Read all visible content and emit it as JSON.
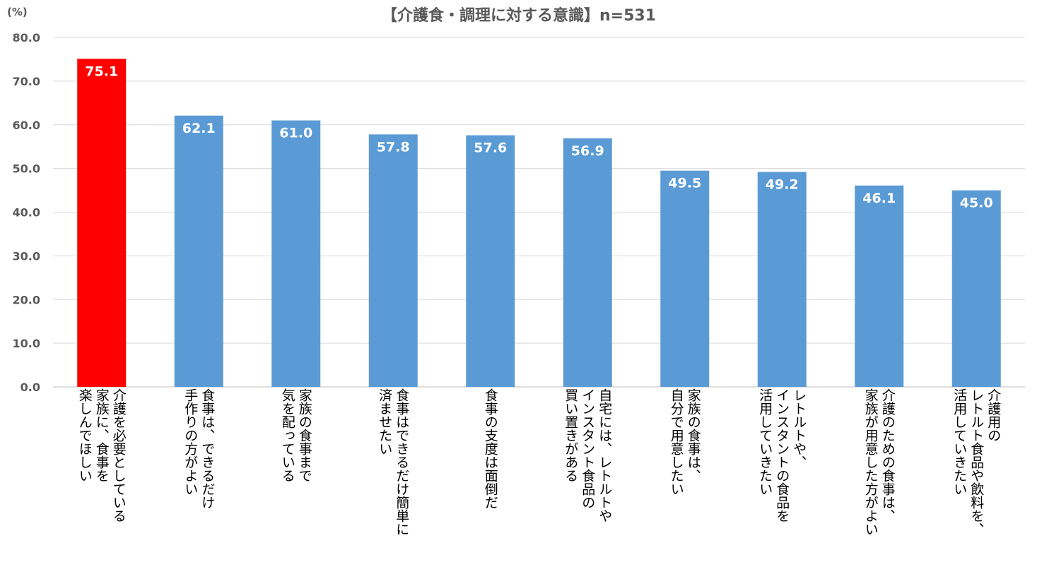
{
  "chart_data": {
    "type": "bar",
    "title": "【介護食・調理に対する意識】n=531",
    "ylabel": "(%)",
    "xlabel": "",
    "ylim": [
      0,
      80
    ],
    "yticks": [
      "0.0",
      "10.0",
      "20.0",
      "30.0",
      "40.0",
      "50.0",
      "60.0",
      "70.0",
      "80.0"
    ],
    "grid": true,
    "colors": {
      "highlight": "#ff0000",
      "bar": "#5b9bd5"
    },
    "categories": [
      "介護を必要としている\n家族に、食事を\n楽しんでほしい",
      "食事は、できるだけ\n手作りの方がよい",
      "家族の食事まで\n気を配っている",
      "食事はできるだけ簡単に\n済ませたい",
      "食事の支度は面倒だ",
      "自宅には、レトルトや\nインスタント食品の\n買い置きがある",
      "家族の食事は、\n自分で用意したい",
      "レトルトや、\nインスタントの食品を\n活用していきたい",
      "介護のための食事は、\n家族が用意した方がよい",
      "介護用の\nレトルト食品や飲料を、\n活用していきたい"
    ],
    "values": [
      75.1,
      62.1,
      61.0,
      57.8,
      57.6,
      56.9,
      49.5,
      49.2,
      46.1,
      45.0
    ],
    "value_labels": [
      "75.1",
      "62.1",
      "61.0",
      "57.8",
      "57.6",
      "56.9",
      "49.5",
      "49.2",
      "46.1",
      "45.0"
    ]
  }
}
